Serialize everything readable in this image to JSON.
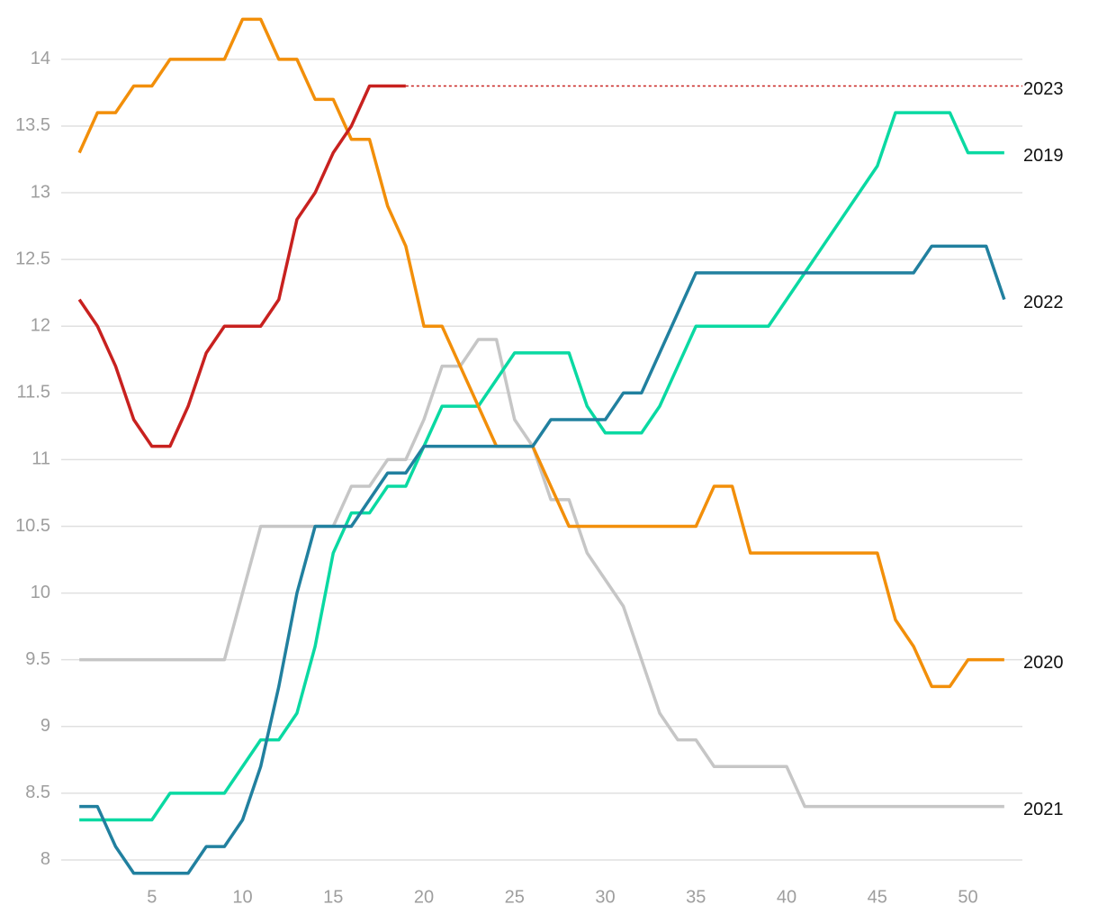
{
  "chart_data": {
    "type": "line",
    "x": [
      1,
      2,
      3,
      4,
      5,
      6,
      7,
      8,
      9,
      10,
      11,
      12,
      13,
      14,
      15,
      16,
      17,
      18,
      19,
      20,
      21,
      22,
      23,
      24,
      25,
      26,
      27,
      28,
      29,
      30,
      31,
      32,
      33,
      34,
      35,
      36,
      37,
      38,
      39,
      40,
      41,
      42,
      43,
      44,
      45,
      46,
      47,
      48,
      49,
      50,
      51,
      52
    ],
    "xlim": [
      0,
      53
    ],
    "xticks": [
      5,
      10,
      15,
      20,
      25,
      30,
      35,
      40,
      45,
      50
    ],
    "ylim": [
      7.75,
      14.35
    ],
    "yticks": [
      8,
      8.5,
      9,
      9.5,
      10,
      10.5,
      11,
      11.5,
      12,
      12.5,
      13,
      13.5,
      14
    ],
    "grid": true,
    "series": [
      {
        "name": "2021",
        "color": "#c6c6c6",
        "values": [
          9.5,
          9.5,
          9.5,
          9.5,
          9.5,
          9.5,
          9.5,
          9.5,
          9.5,
          10,
          10.5,
          10.5,
          10.5,
          10.5,
          10.5,
          10.8,
          10.8,
          11,
          11,
          11.3,
          11.7,
          11.7,
          11.9,
          11.9,
          11.3,
          11.1,
          10.7,
          10.7,
          10.3,
          10.1,
          9.9,
          9.5,
          9.1,
          8.9,
          8.9,
          8.7,
          8.7,
          8.7,
          8.7,
          8.7,
          8.4,
          8.4,
          8.4,
          8.4,
          8.4,
          8.4,
          8.4,
          8.4,
          8.4,
          8.4,
          8.4,
          8.4
        ]
      },
      {
        "name": "2019",
        "color": "#0ad9a2",
        "values": [
          8.3,
          8.3,
          8.3,
          8.3,
          8.3,
          8.5,
          8.5,
          8.5,
          8.5,
          8.7,
          8.9,
          8.9,
          9.1,
          9.6,
          10.3,
          10.6,
          10.6,
          10.8,
          10.8,
          11.1,
          11.4,
          11.4,
          11.4,
          11.6,
          11.8,
          11.8,
          11.8,
          11.8,
          11.4,
          11.2,
          11.2,
          11.2,
          11.4,
          11.7,
          12,
          12,
          12,
          12,
          12,
          12.2,
          12.4,
          12.6,
          12.8,
          13,
          13.2,
          13.6,
          13.6,
          13.6,
          13.6,
          13.3,
          13.3,
          13.3
        ]
      },
      {
        "name": "2020",
        "color": "#f28f0a",
        "values": [
          13.3,
          13.6,
          13.6,
          13.8,
          13.8,
          14,
          14,
          14,
          14,
          14.3,
          14.3,
          14,
          14,
          13.7,
          13.7,
          13.4,
          13.4,
          12.9,
          12.6,
          12,
          12,
          11.7,
          11.4,
          11.1,
          11.1,
          11.1,
          10.8,
          10.5,
          10.5,
          10.5,
          10.5,
          10.5,
          10.5,
          10.5,
          10.5,
          10.8,
          10.8,
          10.3,
          10.3,
          10.3,
          10.3,
          10.3,
          10.3,
          10.3,
          10.3,
          9.8,
          9.6,
          9.3,
          9.3,
          9.5,
          9.5,
          9.5
        ]
      },
      {
        "name": "2022",
        "color": "#21809f",
        "values": [
          8.4,
          8.4,
          8.1,
          7.9,
          7.9,
          7.9,
          7.9,
          8.1,
          8.1,
          8.3,
          8.7,
          9.3,
          10,
          10.5,
          10.5,
          10.5,
          10.7,
          10.9,
          10.9,
          11.1,
          11.1,
          11.1,
          11.1,
          11.1,
          11.1,
          11.1,
          11.3,
          11.3,
          11.3,
          11.3,
          11.5,
          11.5,
          11.8,
          12.1,
          12.4,
          12.4,
          12.4,
          12.4,
          12.4,
          12.4,
          12.4,
          12.4,
          12.4,
          12.4,
          12.4,
          12.4,
          12.4,
          12.6,
          12.6,
          12.6,
          12.6,
          12.2
        ]
      },
      {
        "name": "2023",
        "color": "#c8211f",
        "values": [
          12.2,
          12,
          11.7,
          11.3,
          11.1,
          11.1,
          11.4,
          11.8,
          12,
          12,
          12,
          12.2,
          12.8,
          13,
          13.3,
          13.5,
          13.8,
          13.8,
          13.8,
          null,
          null,
          null,
          null,
          null,
          null,
          null,
          null,
          null,
          null,
          null,
          null,
          null,
          null,
          null,
          null,
          null,
          null,
          null,
          null,
          null,
          null,
          null,
          null,
          null,
          null,
          null,
          null,
          null,
          null,
          null,
          null,
          null
        ]
      }
    ]
  }
}
